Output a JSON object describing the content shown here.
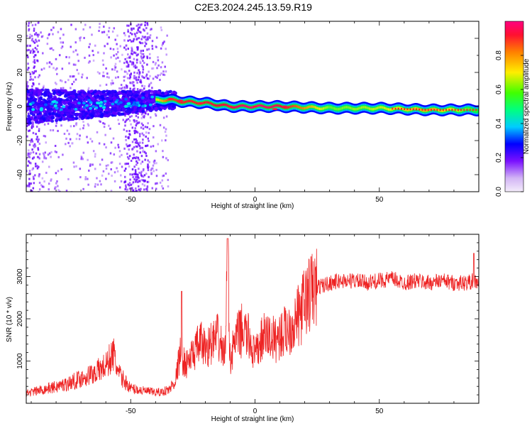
{
  "title": "C2E3.2024.245.13.59.R19",
  "chart_data": [
    {
      "type": "heatmap",
      "xlabel": "Height of straight line (km)",
      "ylabel": "Frequency (Hz)",
      "xlim": [
        -92,
        90
      ],
      "ylim": [
        -50,
        50
      ],
      "xticks": [
        -50,
        0,
        50
      ],
      "yticks": [
        -40,
        -20,
        0,
        20,
        40
      ],
      "colorbar": {
        "label": "Normalized spectral amplitude",
        "range": [
          0,
          1
        ],
        "ticks": [
          0.0,
          0.2,
          0.4,
          0.6,
          0.8
        ],
        "colors": [
          "#f4ecfb",
          "#6a00ff",
          "#0000ff",
          "#00e5ff",
          "#00ff40",
          "#fff000",
          "#ff8000",
          "#ff0030",
          "#ff0080"
        ]
      },
      "ridge_points": [
        {
          "x": -90,
          "y": 0,
          "amp": 0.25
        },
        {
          "x": -70,
          "y": 1,
          "amp": 0.3
        },
        {
          "x": -55,
          "y": 2,
          "amp": 0.35
        },
        {
          "x": -45,
          "y": 3,
          "amp": 0.4
        },
        {
          "x": -35,
          "y": 4,
          "amp": 0.8
        },
        {
          "x": -30,
          "y": 3,
          "amp": 0.85
        },
        {
          "x": -20,
          "y": 2,
          "amp": 0.85
        },
        {
          "x": -10,
          "y": 0,
          "amp": 0.9
        },
        {
          "x": 0,
          "y": 0,
          "amp": 1.0
        },
        {
          "x": 10,
          "y": 0,
          "amp": 0.9
        },
        {
          "x": 30,
          "y": -1,
          "amp": 0.55
        },
        {
          "x": 50,
          "y": -1,
          "amp": 0.6
        },
        {
          "x": 70,
          "y": -2,
          "amp": 0.7
        },
        {
          "x": 90,
          "y": -2,
          "amp": 0.5
        }
      ]
    },
    {
      "type": "line",
      "xlabel": "Height of straight line (km)",
      "ylabel": "SNR (10 * v/v)",
      "xlim": [
        -92,
        90
      ],
      "ylim": [
        0,
        4000
      ],
      "xticks": [
        -50,
        0,
        50
      ],
      "yticks": [
        1000,
        2000,
        3000
      ],
      "color": "#ee2222",
      "series": [
        {
          "x": [
            -92,
            -85,
            -80,
            -75,
            -70,
            -65,
            -60,
            -57,
            -55,
            -50,
            -45,
            -40,
            -37,
            -35,
            -32,
            -30,
            -28,
            -25,
            -22,
            -20,
            -18,
            -15,
            -12,
            -11,
            -10,
            -8,
            -5,
            -2,
            0,
            3,
            5,
            8,
            10,
            12,
            15,
            18,
            20,
            22,
            25,
            28,
            30,
            35,
            40,
            45,
            50,
            55,
            60,
            65,
            70,
            75,
            80,
            85,
            88,
            90
          ],
          "y": [
            200,
            280,
            330,
            400,
            500,
            600,
            750,
            1000,
            600,
            300,
            250,
            220,
            230,
            280,
            550,
            1200,
            900,
            1150,
            1450,
            1300,
            1400,
            1550,
            1150,
            3500,
            1000,
            1500,
            1750,
            1500,
            1100,
            1550,
            1600,
            1500,
            1600,
            1700,
            1850,
            2100,
            2400,
            2600,
            2750,
            2800,
            2850,
            2900,
            2900,
            2850,
            2900,
            2950,
            2850,
            2900,
            2850,
            2900,
            2850,
            2850,
            2900,
            2850
          ]
        }
      ]
    }
  ]
}
